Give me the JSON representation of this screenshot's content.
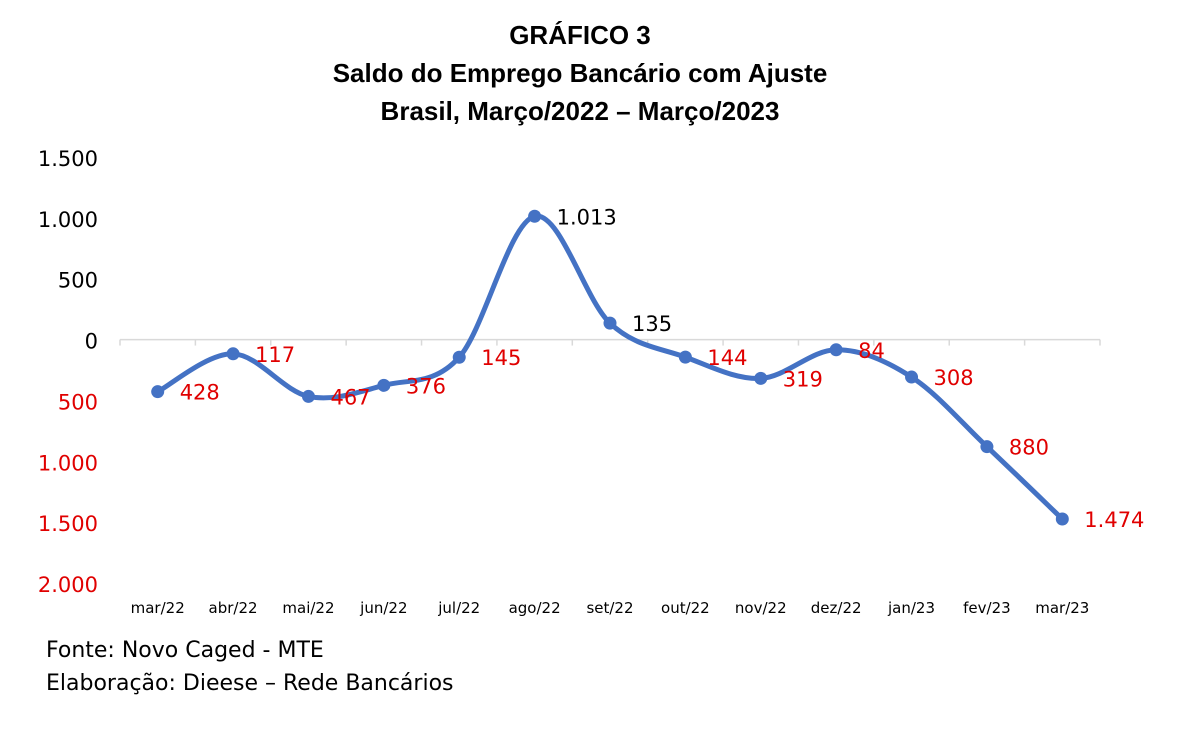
{
  "header": {
    "line1": "GRÁFICO 3",
    "line2": "Saldo do Emprego Bancário com Ajuste",
    "line3": "Brasil, Março/2022 – Março/2023"
  },
  "footer": {
    "source": "Fonte: Novo Caged - MTE",
    "elaboration": "Elaboração: Dieese – Rede Bancários"
  },
  "colors": {
    "line": "#4472C4",
    "negative_label": "#E00000",
    "positive_label": "#000000",
    "axis": "#D9D9D9"
  },
  "chart_data": {
    "type": "line",
    "title": "GRÁFICO 3 Saldo do Emprego Bancário com Ajuste Brasil, Março/2022 – Março/2023",
    "categories": [
      "mar/22",
      "abr/22",
      "mai/22",
      "jun/22",
      "jul/22",
      "ago/22",
      "set/22",
      "out/22",
      "nov/22",
      "dez/22",
      "jan/23",
      "fev/23",
      "mar/23"
    ],
    "series": [
      {
        "values": [
          -428,
          -117,
          -467,
          -376,
          -145,
          1013,
          135,
          -144,
          -319,
          -84,
          -308,
          -880,
          -1474
        ]
      }
    ],
    "data_labels": [
      "428",
      "117",
      "467",
      "376",
      "145",
      "1.013",
      "135",
      "144",
      "319",
      "84",
      "308",
      "880",
      "1.474"
    ],
    "y_ticks": [
      1500,
      1000,
      500,
      0,
      -500,
      -1000,
      -1500,
      -2000
    ],
    "y_tick_labels": [
      "1.500",
      "1.000",
      "500",
      "0",
      "500",
      "1.000",
      "1.500",
      "2.000"
    ],
    "ylim": [
      -2000,
      1500
    ],
    "smooth": true,
    "grid": false,
    "legend": "none",
    "xlabel": "",
    "ylabel": ""
  }
}
